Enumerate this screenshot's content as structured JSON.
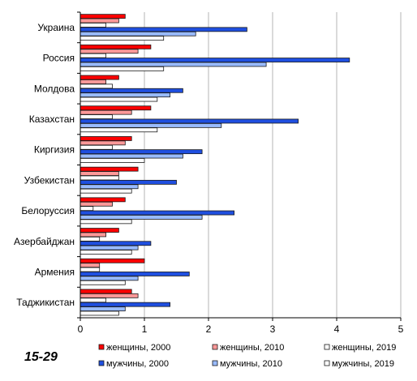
{
  "corner_label": "15-29",
  "chart_data": {
    "type": "bar",
    "orientation": "horizontal",
    "categories": [
      "Украина",
      "Россия",
      "Молдова",
      "Казахстан",
      "Киргизия",
      "Узбекистан",
      "Белоруссия",
      "Азербайджан",
      "Армения",
      "Таджикистан"
    ],
    "series": [
      {
        "name": "женщины, 2000",
        "color": "#ff0000",
        "values": [
          0.7,
          1.1,
          0.6,
          1.1,
          0.8,
          0.9,
          0.7,
          0.6,
          1.0,
          0.8
        ]
      },
      {
        "name": "женщины, 2010",
        "color": "#ff9999",
        "values": [
          0.6,
          0.9,
          0.4,
          0.8,
          0.7,
          0.6,
          0.5,
          0.4,
          0.3,
          0.9
        ]
      },
      {
        "name": "женщины, 2019",
        "color": "#ffffff",
        "values": [
          0.4,
          0.4,
          0.5,
          0.5,
          0.5,
          0.6,
          0.2,
          0.3,
          0.3,
          0.4
        ]
      },
      {
        "name": "мужчины, 2000",
        "color": "#1f4fe0",
        "values": [
          2.6,
          4.2,
          1.6,
          3.4,
          1.9,
          1.5,
          2.4,
          1.1,
          1.7,
          1.4
        ]
      },
      {
        "name": "мужчины, 2010",
        "color": "#99bbff",
        "values": [
          1.8,
          2.9,
          1.4,
          2.2,
          1.6,
          0.9,
          1.9,
          0.9,
          0.9,
          0.7
        ]
      },
      {
        "name": "мужчины, 2019",
        "color": "#ffffff",
        "values": [
          1.3,
          1.3,
          1.2,
          1.2,
          1.0,
          0.8,
          0.8,
          0.8,
          0.7,
          0.6
        ]
      }
    ],
    "xlim": [
      0,
      5
    ],
    "xticks": [
      "0",
      "1",
      "2",
      "3",
      "4",
      "5"
    ],
    "grid": "vertical",
    "legend_position": "bottom"
  }
}
